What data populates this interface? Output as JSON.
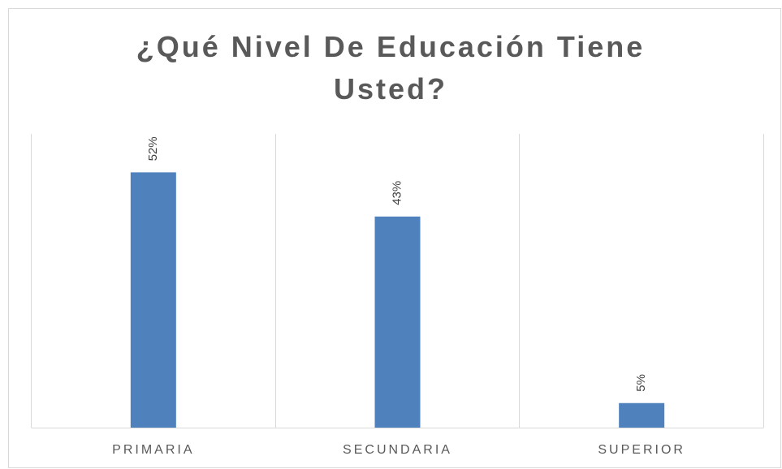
{
  "chart_data": {
    "type": "bar",
    "title": "¿Qué Nivel De Educación Tiene Usted?",
    "categories": [
      "PRIMARIA",
      "SECUNDARIA",
      "SUPERIOR"
    ],
    "values": [
      52,
      43,
      5
    ],
    "value_labels": [
      "52%",
      "43%",
      "5%"
    ],
    "color": "#4f81bd",
    "ylim": [
      0,
      60
    ]
  }
}
